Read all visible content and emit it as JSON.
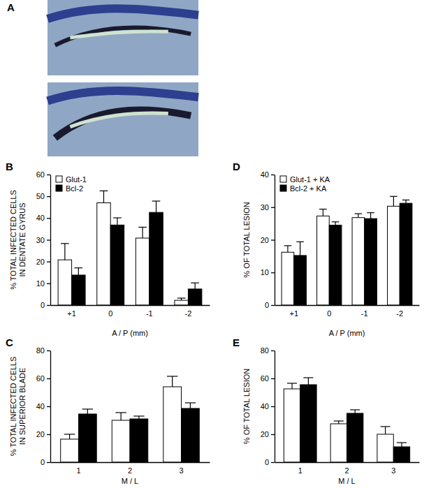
{
  "figure": {
    "panel_a": {
      "label": "A"
    }
  },
  "chart_data": [
    {
      "type": "bar",
      "title": "B",
      "categories": [
        "+1",
        "0",
        "-1",
        "-2"
      ],
      "xlabel": "A / P (mm)",
      "ylabel": [
        "% TOTAL INFECTED CELLS",
        "IN DENTATE GYRUS"
      ],
      "ylim": [
        0,
        60
      ],
      "yticks": [
        0,
        10,
        20,
        30,
        40,
        50,
        60
      ],
      "legend": "upper-left",
      "series": [
        {
          "name": "Glut-1",
          "color": "#ffffff",
          "values": [
            20.8,
            47,
            30.8,
            2.2
          ],
          "errors": [
            7.5,
            5.5,
            5,
            1
          ]
        },
        {
          "name": "Bcl-2",
          "color": "#000000",
          "values": [
            13.8,
            36.8,
            42.6,
            7.4
          ],
          "errors": [
            3.3,
            3.3,
            5.2,
            2.8
          ]
        }
      ]
    },
    {
      "type": "bar",
      "title": "C",
      "categories": [
        "1",
        "2",
        "3"
      ],
      "xlabel": "M / L",
      "ylabel": [
        "% TOTAL INFECTED CELLS",
        "IN SUPERIOR BLADE"
      ],
      "ylim": [
        0,
        80
      ],
      "yticks": [
        0,
        20,
        40,
        60,
        80
      ],
      "series": [
        {
          "color": "#ffffff",
          "values": [
            16.5,
            30,
            54
          ],
          "errors": [
            3.5,
            5.5,
            7.5
          ]
        },
        {
          "color": "#000000",
          "values": [
            34.5,
            31,
            38.5
          ],
          "errors": [
            3.5,
            2,
            4
          ]
        }
      ]
    },
    {
      "type": "bar",
      "title": "D",
      "categories": [
        "+1",
        "0",
        "-1",
        "-2"
      ],
      "xlabel": "A / P (mm)",
      "ylabel": [
        "% OF TOTAL LESION"
      ],
      "ylim": [
        0,
        40
      ],
      "yticks": [
        0,
        10,
        20,
        30,
        40
      ],
      "legend": "upper-left",
      "series": [
        {
          "name": "Glut-1 + KA",
          "color": "#ffffff",
          "values": [
            16.2,
            27.3,
            26.8,
            30.3
          ],
          "errors": [
            2,
            2.1,
            1.2,
            3
          ]
        },
        {
          "name": "Bcl-2 + KA",
          "color": "#000000",
          "values": [
            15.2,
            24.5,
            26.5,
            31.2
          ],
          "errors": [
            4.2,
            1,
            1.8,
            1
          ]
        }
      ]
    },
    {
      "type": "bar",
      "title": "E",
      "categories": [
        "1",
        "2",
        "3"
      ],
      "xlabel": "M / L",
      "ylabel": [
        "% OF TOTAL LESION"
      ],
      "ylim": [
        0,
        80
      ],
      "yticks": [
        0,
        20,
        40,
        60,
        80
      ],
      "series": [
        {
          "color": "#ffffff",
          "values": [
            52.5,
            27.5,
            20
          ],
          "errors": [
            4,
            2,
            5.5
          ]
        },
        {
          "color": "#000000",
          "values": [
            55.5,
            35,
            11
          ],
          "errors": [
            5,
            2.5,
            3
          ]
        }
      ]
    }
  ]
}
